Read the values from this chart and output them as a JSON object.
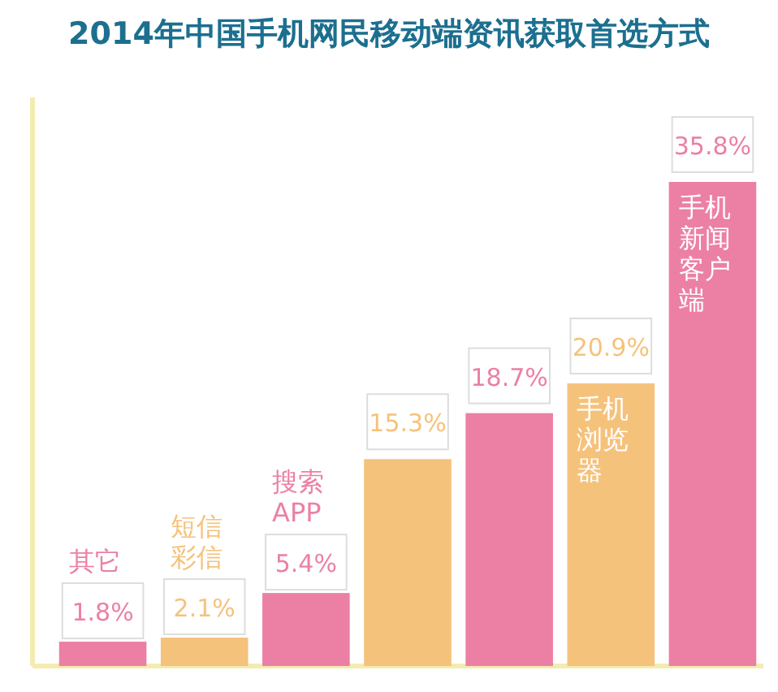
{
  "chart_data": {
    "type": "bar",
    "title": "2014年中国手机网民移动端资讯获取首选方式",
    "categories": [
      "其它",
      "短信彩信",
      "搜索APP",
      null,
      null,
      "手机浏览器",
      "手机新闻客户端"
    ],
    "values": [
      1.8,
      2.1,
      5.4,
      15.3,
      18.7,
      20.9,
      35.8
    ],
    "value_labels": [
      "1.8%",
      "2.1%",
      "5.4%",
      "15.3%",
      "18.7%",
      "20.9%",
      "35.8%"
    ],
    "colors": [
      "#ec80a4",
      "#f5c27c",
      "#ec80a4",
      "#f5c27c",
      "#ec80a4",
      "#f5c27c",
      "#ec80a4"
    ]
  }
}
